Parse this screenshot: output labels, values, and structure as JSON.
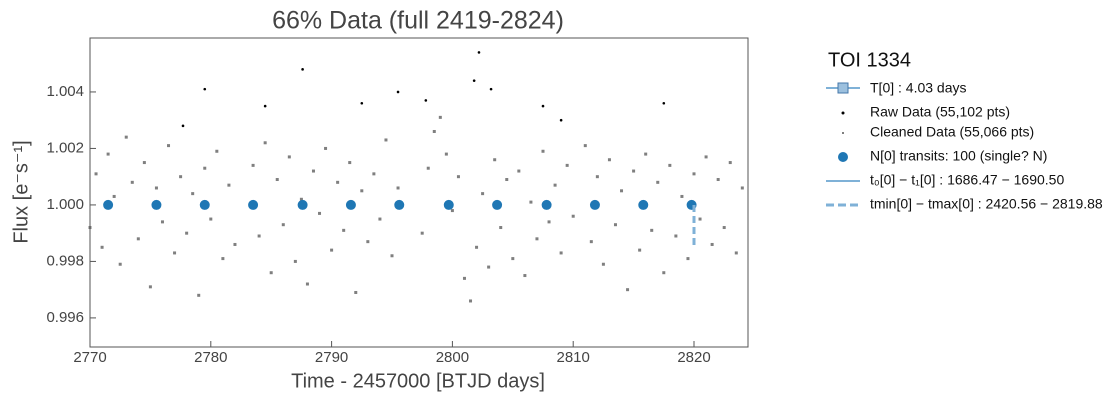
{
  "chart_data": {
    "type": "scatter",
    "title": "66% Data (full 2419-2824)",
    "x_label": "Time - 2457000 [BTJD days]",
    "y_label": "Flux [e⁻s⁻¹]",
    "xlim": [
      2770,
      2824.47
    ],
    "ylim": [
      0.99497,
      1.00591
    ],
    "xticks": [
      2770,
      2780,
      2790,
      2800,
      2810,
      2820
    ],
    "yticks": [
      0.996,
      0.998,
      {
        "value": 1,
        "label": "1.000"
      },
      1.002,
      1.004
    ],
    "legend_title": "TOI 1334",
    "legend_extra": [
      "T[0] : 4.03 days",
      "t₀[0] − t₁[0] : 1686.47 − 1690.50",
      "tmin[0] − tmax[0] : 2420.56 − 2819.88"
    ],
    "series": [
      {
        "name": "Cleaned Data (55,066 pts)",
        "color": "#7f7f7f",
        "x": [
          2770.0,
          2770.5,
          2771.0,
          2771.5,
          2772.0,
          2772.5,
          2773.0,
          2773.5,
          2774.0,
          2774.5,
          2775.0,
          2775.5,
          2776.0,
          2776.5,
          2777.0,
          2777.5,
          2778.0,
          2778.5,
          2779.0,
          2779.5,
          2780.0,
          2780.5,
          2781.0,
          2781.5,
          2782.0,
          2783.5,
          2784.0,
          2784.5,
          2785.0,
          2785.5,
          2786.0,
          2786.5,
          2787.0,
          2787.5,
          2788.0,
          2788.5,
          2789.0,
          2789.5,
          2790.0,
          2790.5,
          2791.0,
          2791.5,
          2792.0,
          2792.5,
          2793.0,
          2793.5,
          2794.0,
          2794.5,
          2795.0,
          2795.5,
          2797.5,
          2798.0,
          2798.5,
          2799.0,
          2799.5,
          2800.0,
          2800.5,
          2801.0,
          2801.5,
          2802.0,
          2802.5,
          2803.0,
          2803.5,
          2804.0,
          2804.5,
          2805.0,
          2805.5,
          2806.0,
          2806.5,
          2807.0,
          2807.5,
          2808.0,
          2808.5,
          2809.0,
          2809.5,
          2810.0,
          2811.0,
          2811.5,
          2812.0,
          2812.5,
          2813.0,
          2813.5,
          2814.0,
          2814.5,
          2815.0,
          2815.5,
          2816.0,
          2816.5,
          2817.0,
          2817.5,
          2818.0,
          2818.5,
          2819.0,
          2819.5,
          2820.0,
          2820.5,
          2821.0,
          2821.5,
          2822.0,
          2822.5,
          2823.0,
          2823.5,
          2824.0
        ],
        "values": [
          0.9992,
          1.0011,
          0.9985,
          1.0018,
          1.0003,
          0.9979,
          1.0024,
          1.0008,
          0.9988,
          1.0015,
          0.9971,
          1.0006,
          0.9994,
          1.0021,
          0.9983,
          1.001,
          0.999,
          1.0004,
          0.9968,
          1.0013,
          0.9995,
          1.0019,
          0.9981,
          1.0007,
          0.9986,
          1.0014,
          0.9989,
          1.0022,
          0.9976,
          1.0009,
          0.9993,
          1.0017,
          0.998,
          1.0002,
          0.9972,
          1.0012,
          0.9997,
          1.002,
          0.9984,
          1.0008,
          0.9991,
          1.0015,
          0.9969,
          1.0005,
          0.9987,
          1.0011,
          0.9995,
          1.0023,
          0.9982,
          1.0006,
          0.999,
          1.0013,
          1.0026,
          1.0031,
          1.0018,
          0.9998,
          1.001,
          0.9974,
          0.9966,
          0.9985,
          1.0004,
          0.9978,
          1.0016,
          0.9992,
          1.0009,
          0.9981,
          1.0012,
          0.9975,
          1.0001,
          0.9988,
          1.0019,
          0.9994,
          1.0007,
          0.9983,
          1.0014,
          0.9996,
          1.0021,
          0.9987,
          1.001,
          0.9979,
          1.0016,
          0.9993,
          1.0005,
          0.997,
          1.0012,
          0.9984,
          1.0018,
          0.9991,
          1.0008,
          0.9976,
          1.0014,
          0.9989,
          1.0003,
          0.9981,
          1.0011,
          0.9995,
          1.0017,
          0.9986,
          1.0009,
          0.9992,
          1.0015,
          0.9983,
          1.0006
        ]
      },
      {
        "name": "Raw Data (55,102 pts)",
        "color": "#000000",
        "x": [
          2777.7,
          2779.5,
          2784.5,
          2787.6,
          2792.5,
          2795.5,
          2797.8,
          2801.8,
          2802.2,
          2803.2,
          2807.5,
          2809.0,
          2817.5
        ],
        "values": [
          1.0028,
          1.0041,
          1.0035,
          1.0048,
          1.0036,
          1.004,
          1.0037,
          1.0044,
          1.0054,
          1.0041,
          1.0035,
          1.003,
          1.0036
        ]
      },
      {
        "name": "N[0] transits: 100 (single? N)",
        "color": "#1f77b4",
        "x": [
          2771.5,
          2775.5,
          2779.5,
          2783.5,
          2787.6,
          2791.6,
          2795.6,
          2799.7,
          2803.7,
          2807.8,
          2811.8,
          2815.8,
          2819.8
        ],
        "values": [
          1,
          1,
          1,
          1,
          1,
          1,
          1,
          1,
          1,
          1,
          1,
          1,
          1
        ]
      }
    ]
  }
}
